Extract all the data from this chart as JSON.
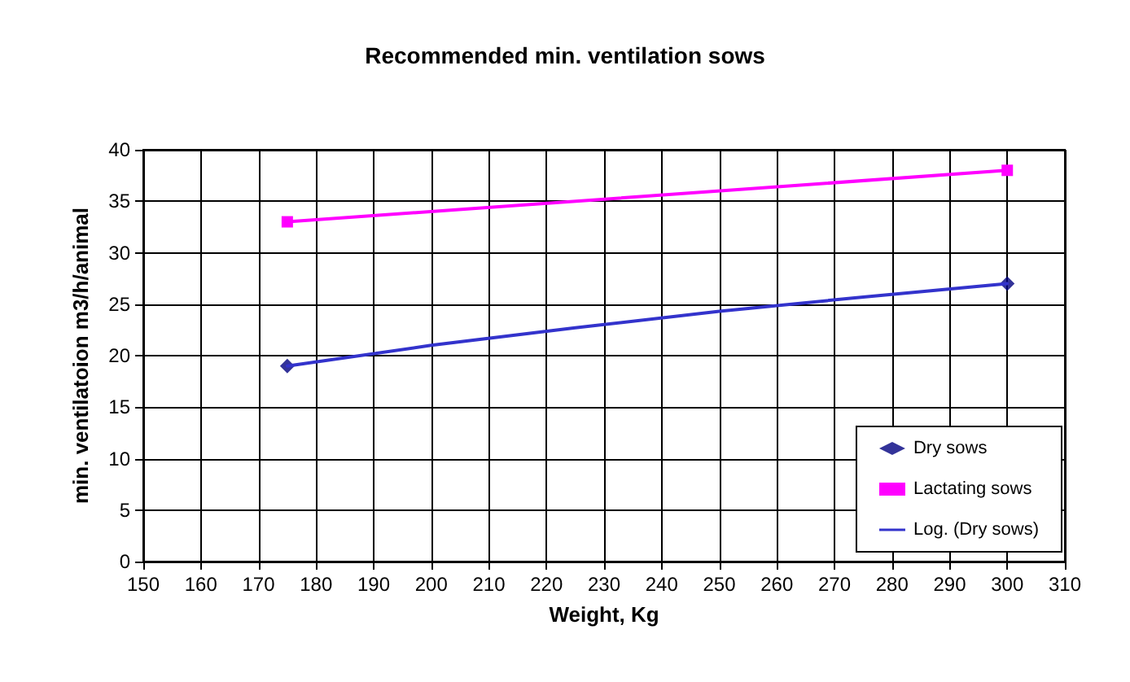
{
  "chart_data": {
    "type": "scatter",
    "title": "Recommended min. ventilation sows",
    "xlabel": "Weight, Kg",
    "ylabel": "min. ventilatoion m3/h/animal",
    "xlim": [
      150,
      310
    ],
    "xticks": [
      150,
      160,
      170,
      180,
      190,
      200,
      210,
      220,
      230,
      240,
      250,
      260,
      270,
      280,
      290,
      300,
      310
    ],
    "ylim": [
      0,
      40
    ],
    "yticks": [
      0,
      5,
      10,
      15,
      20,
      25,
      30,
      35,
      40
    ],
    "grid": true,
    "legend": "bottom right",
    "series": [
      {
        "name": "Dry sows",
        "marker": "diamond",
        "color": "#000080",
        "x": [
          175,
          300
        ],
        "values": [
          19,
          27
        ]
      },
      {
        "name": "Lactating sows",
        "type": "line",
        "marker": "square",
        "color": "#ff00ff",
        "x": [
          175,
          300
        ],
        "values": [
          33,
          38
        ]
      },
      {
        "name": "Log. (Dry sows)",
        "type": "line",
        "marker": "none",
        "color": "#3333cc",
        "line_style": "solid",
        "x": [
          175,
          200,
          225,
          250,
          275,
          300
        ],
        "values": [
          19,
          21,
          22.7,
          24.3,
          25.7,
          27
        ]
      }
    ]
  }
}
